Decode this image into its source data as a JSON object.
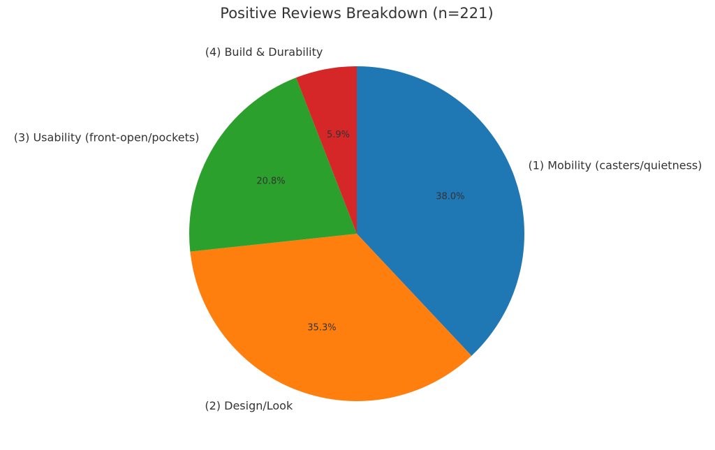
{
  "chart_data": {
    "type": "pie",
    "title": "Positive Reviews Breakdown (n=221)",
    "categories": [
      "(1) Mobility (casters/quietness)",
      "(2) Design/Look",
      "(3) Usability (front-open/pockets)",
      "(4) Build & Durability"
    ],
    "values": [
      38.0,
      35.3,
      20.8,
      5.9
    ],
    "value_labels": [
      "38.0%",
      "35.3%",
      "20.8%",
      "5.9%"
    ],
    "colors": [
      "#1f77b4",
      "#ff7f0e",
      "#2ca02c",
      "#d62728"
    ],
    "start_angle": 90,
    "clockwise": true
  }
}
